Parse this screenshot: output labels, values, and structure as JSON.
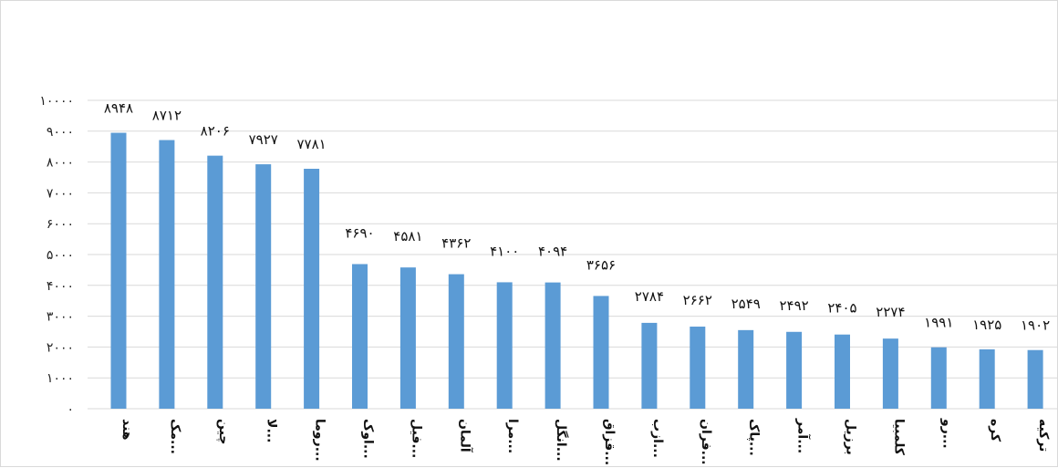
{
  "chart_data": {
    "type": "bar",
    "title": "",
    "xlabel": "",
    "ylabel": "",
    "ylim": [
      0,
      10000
    ],
    "grid": true,
    "bar_color": "#5b9bd5",
    "y_ticks": [
      0,
      1000,
      2000,
      3000,
      4000,
      5000,
      6000,
      7000,
      8000,
      9000,
      10000
    ],
    "y_tick_labels": [
      "۰",
      "۱۰۰۰",
      "۲۰۰۰",
      "۳۰۰۰",
      "۴۰۰۰",
      "۵۰۰۰",
      "۶۰۰۰",
      "۷۰۰۰",
      "۸۰۰۰",
      "۹۰۰۰",
      "۱۰۰۰۰"
    ],
    "categories": [
      "هند",
      "مک...",
      "چین",
      "لا...",
      "روما...",
      "اوک...",
      "فیل...",
      "آلمان",
      "مرا...",
      "انگل...",
      "قزاق...",
      "ازب...",
      "فران...",
      "پاک...",
      "آمر...",
      "برزیل",
      "کلمبیا",
      "رو...",
      "کره",
      "ترکیه"
    ],
    "values": [
      8948,
      8712,
      8206,
      7927,
      7781,
      4690,
      4581,
      4362,
      4100,
      4094,
      3656,
      2784,
      2662,
      2549,
      2492,
      2405,
      2274,
      1991,
      1925,
      1902
    ],
    "data_labels": [
      "۸۹۴۸",
      "۸۷۱۲",
      "۸۲۰۶",
      "۷۹۲۷",
      "۷۷۸۱",
      "۴۶۹۰",
      "۴۵۸۱",
      "۴۳۶۲",
      "۴۱۰۰",
      "۴۰۹۴",
      "۳۶۵۶",
      "۲۷۸۴",
      "۲۶۶۲",
      "۲۵۴۹",
      "۲۴۹۲",
      "۲۴۰۵",
      "۲۲۷۴",
      "۱۹۹۱",
      "۱۹۲۵",
      "۱۹۰۲"
    ]
  }
}
